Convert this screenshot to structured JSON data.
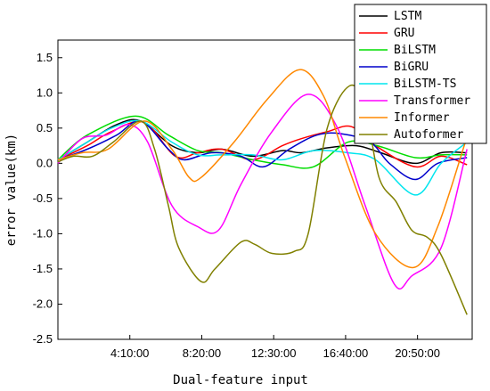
{
  "chart_data": {
    "type": "line",
    "title": "",
    "xlabel": "Dual-feature input",
    "ylabel": "error value(km)",
    "x_tick_labels": [
      "4:10:00",
      "8:20:00",
      "12:30:00",
      "16:40:00",
      "20:50:00"
    ],
    "x_tick_positions": [
      4.1667,
      8.3333,
      12.5,
      16.6667,
      20.8333
    ],
    "xlim": [
      0,
      24
    ],
    "x_unit": "hours",
    "ylim": [
      -2.5,
      1.75
    ],
    "y_ticks": [
      -2.5,
      -2.0,
      -1.5,
      -1.0,
      -0.5,
      0.0,
      0.5,
      1.0,
      1.5
    ],
    "y_tick_labels": [
      "-2.5",
      "-2.0",
      "-1.5",
      "-1.0",
      "-0.5",
      "0.0",
      "0.5",
      "1.0",
      "1.5"
    ],
    "grid": false,
    "legend_position": "top-right",
    "series": [
      {
        "name": "LSTM",
        "color": "#000000",
        "x": [
          0,
          1.7,
          3.4,
          4.8,
          6.6,
          8.1,
          9.5,
          11.3,
          13.0,
          14.1,
          15.6,
          17.3,
          18.7,
          20.7,
          22.2,
          23.7
        ],
        "y": [
          0.05,
          0.3,
          0.55,
          0.6,
          0.25,
          0.15,
          0.2,
          0.1,
          0.18,
          0.15,
          0.22,
          0.25,
          0.15,
          0.0,
          0.15,
          0.15
        ]
      },
      {
        "name": "GRU",
        "color": "#ff0000",
        "x": [
          0,
          1.7,
          3.1,
          5.0,
          6.8,
          8.1,
          9.5,
          11.3,
          13.0,
          14.1,
          15.6,
          17.0,
          18.4,
          20.7,
          22.2,
          23.7
        ],
        "y": [
          0.05,
          0.25,
          0.45,
          0.58,
          0.1,
          0.15,
          0.2,
          0.05,
          0.25,
          0.35,
          0.45,
          0.52,
          0.25,
          -0.05,
          0.1,
          -0.02
        ]
      },
      {
        "name": "BiLSTM",
        "color": "#00dd00",
        "x": [
          0,
          1.7,
          4.5,
          6.4,
          8.1,
          9.5,
          11.3,
          13.0,
          14.8,
          16.8,
          18.5,
          20.7,
          22.2,
          23.7
        ],
        "y": [
          0.05,
          0.4,
          0.67,
          0.4,
          0.18,
          0.15,
          0.05,
          -0.02,
          -0.05,
          0.3,
          0.25,
          0.08,
          0.12,
          0.12
        ]
      },
      {
        "name": "BiGRU",
        "color": "#0000cc",
        "x": [
          0,
          1.7,
          3.4,
          4.8,
          6.4,
          7.3,
          8.9,
          10.6,
          11.9,
          13.4,
          15.0,
          16.4,
          18.1,
          19.2,
          20.7,
          22.0,
          23.7
        ],
        "y": [
          0.05,
          0.2,
          0.4,
          0.6,
          0.2,
          0.05,
          0.15,
          0.1,
          -0.05,
          0.2,
          0.4,
          0.42,
          0.3,
          0.0,
          -0.23,
          0.0,
          0.08
        ]
      },
      {
        "name": "BiLSTM-TS",
        "color": "#00e5ee",
        "x": [
          0,
          1.7,
          3.1,
          4.8,
          6.6,
          8.1,
          9.5,
          11.3,
          13.0,
          14.8,
          16.8,
          18.4,
          20.7,
          22.2,
          23.7
        ],
        "y": [
          0.05,
          0.3,
          0.5,
          0.6,
          0.3,
          0.12,
          0.12,
          0.12,
          0.05,
          0.18,
          0.15,
          0.05,
          -0.45,
          0.0,
          0.3
        ]
      },
      {
        "name": "Transformer",
        "color": "#ff00ff",
        "x": [
          0,
          1.4,
          2.8,
          4.1,
          5.2,
          6.6,
          8.1,
          9.3,
          10.6,
          12.4,
          14.5,
          16.2,
          17.8,
          19.5,
          20.5,
          22.2,
          23.7
        ],
        "y": [
          0.0,
          0.35,
          0.4,
          0.55,
          0.3,
          -0.6,
          -0.9,
          -0.95,
          -0.3,
          0.45,
          0.98,
          0.5,
          -0.6,
          -1.72,
          -1.6,
          -1.2,
          0.2
        ]
      },
      {
        "name": "Informer",
        "color": "#ff8800",
        "x": [
          0,
          1.4,
          2.9,
          5.0,
          6.6,
          7.6,
          8.3,
          10.2,
          12.1,
          14.0,
          15.4,
          16.6,
          18.4,
          20.6,
          22.0,
          23.6
        ],
        "y": [
          0.05,
          0.15,
          0.2,
          0.6,
          0.2,
          -0.2,
          -0.2,
          0.3,
          0.9,
          1.33,
          0.95,
          0.1,
          -1.0,
          -1.48,
          -0.9,
          0.3
        ]
      },
      {
        "name": "Autoformer",
        "color": "#808000",
        "x": [
          0,
          0.9,
          2.0,
          3.2,
          4.8,
          5.6,
          6.4,
          7.0,
          8.3,
          9.1,
          10.6,
          11.4,
          12.4,
          13.7,
          14.5,
          15.6,
          16.9,
          17.8,
          18.6,
          19.6,
          20.5,
          21.4,
          22.2,
          23.7
        ],
        "y": [
          0.02,
          0.1,
          0.1,
          0.3,
          0.6,
          0.2,
          -0.6,
          -1.2,
          -1.68,
          -1.5,
          -1.12,
          -1.15,
          -1.28,
          -1.25,
          -1.0,
          0.5,
          1.1,
          0.8,
          -0.2,
          -0.55,
          -0.95,
          -1.05,
          -1.3,
          -2.15
        ]
      }
    ]
  }
}
